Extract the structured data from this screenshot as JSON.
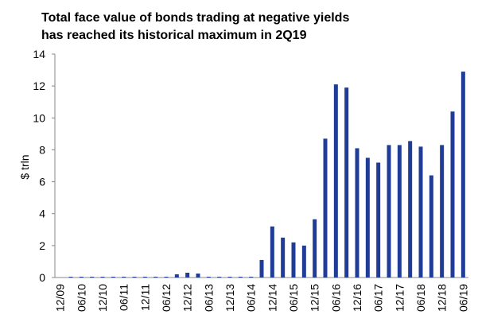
{
  "chart_data": {
    "type": "bar",
    "title": [
      "Total face value of bonds trading at negative yields",
      "has reached its historical maximum  in 2Q19"
    ],
    "y_label": "$ trln",
    "categories": [
      "12/09",
      null,
      "06/10",
      null,
      "12/10",
      null,
      "06/11",
      null,
      "12/11",
      null,
      "06/12",
      null,
      "12/12",
      null,
      "06/13",
      null,
      "12/13",
      null,
      "06/14",
      null,
      "12/14",
      null,
      "06/15",
      null,
      "12/15",
      null,
      "06/16",
      null,
      "12/16",
      null,
      "06/17",
      null,
      "12/17",
      null,
      "06/18",
      null,
      "12/18",
      null,
      "06/19"
    ],
    "values": [
      0,
      0.05,
      0.05,
      0.05,
      0.05,
      0.05,
      0.05,
      0.05,
      0.05,
      0.05,
      0.05,
      0.2,
      0.3,
      0.25,
      0.05,
      0.05,
      0.05,
      0.05,
      0.05,
      1.1,
      3.2,
      2.5,
      2.2,
      2.0,
      3.65,
      8.7,
      12.1,
      11.9,
      8.1,
      7.5,
      7.2,
      8.3,
      8.3,
      8.55,
      8.2,
      6.4,
      8.3,
      10.4,
      12.9
    ],
    "color": "#1f3c96",
    "ylim": [
      0,
      14
    ],
    "yticks": [
      0,
      2,
      4,
      6,
      8,
      10,
      12,
      14
    ],
    "grid": false
  }
}
